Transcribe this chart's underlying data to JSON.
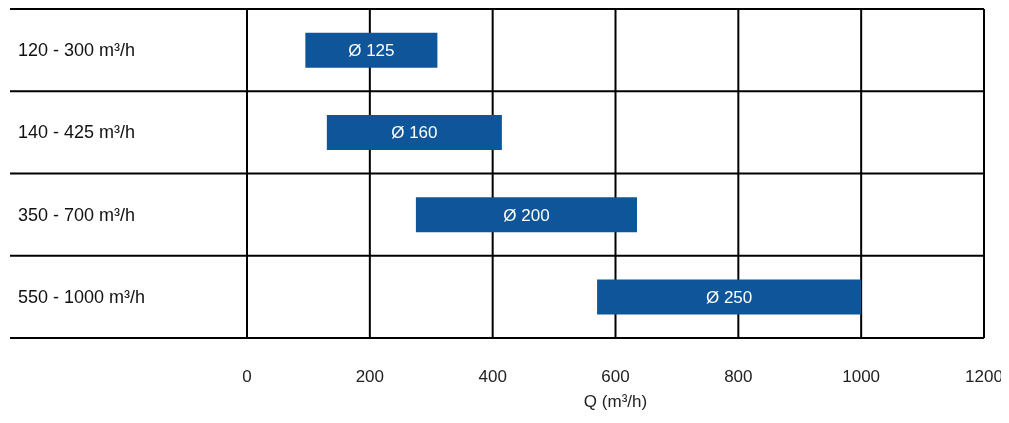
{
  "chart_data": {
    "type": "bar",
    "orientation": "horizontal",
    "xlabel": "Q (m³/h)",
    "categories": [
      "120 - 300 m³/h",
      "140 - 425 m³/h",
      "350 - 700 m³/h",
      "550 - 1000 m³/h"
    ],
    "base": [
      95,
      130,
      275,
      570
    ],
    "values": [
      215,
      285,
      360,
      430
    ],
    "color": "#0f5599",
    "xlim": [
      0,
      1200
    ],
    "xticks": [
      0,
      200,
      400,
      600,
      800,
      1000,
      1200
    ],
    "grid": true,
    "value_labels": [
      "Ø 125",
      "Ø 160",
      "Ø 200",
      "Ø 250"
    ]
  }
}
